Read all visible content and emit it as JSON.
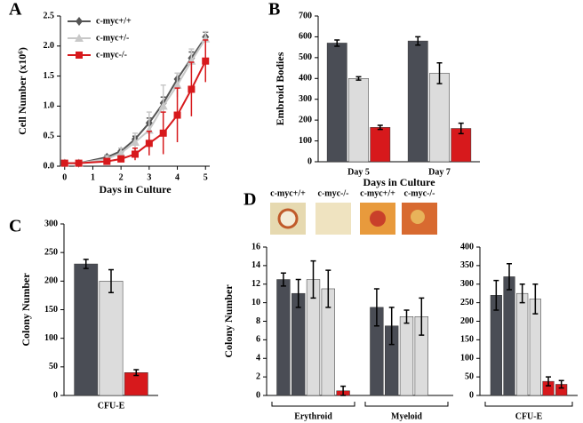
{
  "chart_data": [
    {
      "type": "line",
      "panel": "A",
      "xlabel": "Days in Culture",
      "ylabel": "Cell Number (x10⁶)",
      "x": [
        0,
        0.5,
        1.5,
        2,
        2.5,
        3,
        3.5,
        4,
        4.5,
        5
      ],
      "xlim": [
        -0.15,
        5.15
      ],
      "xticks": [
        0,
        1,
        2,
        3,
        4,
        5
      ],
      "ylim": [
        0,
        2.5
      ],
      "yticks": [
        {
          "value": 0,
          "label": "0.0"
        },
        {
          "value": 0.5,
          "label": "0.5"
        },
        {
          "value": 1,
          "label": "1.0"
        },
        {
          "value": 1.5,
          "label": "1.5"
        },
        {
          "value": 2,
          "label": "2.0"
        },
        {
          "value": 2.5,
          "label": "2.5"
        }
      ],
      "legend": "upper left",
      "series": [
        {
          "name": "c-myc+/+",
          "color": "#555555",
          "marker": "diamond",
          "values": [
            0.05,
            0.05,
            0.15,
            0.25,
            0.45,
            0.72,
            1.05,
            1.45,
            1.8,
            2.15
          ],
          "errors": [
            0,
            0,
            0.03,
            0.05,
            0.05,
            0.08,
            0.1,
            0.1,
            0.1,
            0.08
          ]
        },
        {
          "name": "c-myc+/-",
          "color": "#c8c8c8",
          "marker": "triangle",
          "values": [
            0.05,
            0.05,
            0.12,
            0.22,
            0.4,
            0.6,
            1.0,
            1.35,
            1.75,
            2.12
          ],
          "errors": [
            0,
            0,
            0.05,
            0.08,
            0.15,
            0.3,
            0.35,
            0.2,
            0.2,
            0.12
          ]
        },
        {
          "name": "c-myc-/-",
          "color": "#d7191c",
          "marker": "square",
          "values": [
            0.05,
            0.05,
            0.08,
            0.12,
            0.2,
            0.38,
            0.55,
            0.85,
            1.28,
            1.75
          ],
          "errors": [
            0,
            0,
            0.02,
            0.05,
            0.1,
            0.2,
            0.35,
            0.45,
            0.45,
            0.35
          ]
        }
      ]
    },
    {
      "type": "bar",
      "panel": "B",
      "xlabel": "Days in Culture",
      "ylabel": "Embroid Bodies",
      "categories": [
        "Day 5",
        "Day 7"
      ],
      "ylim": [
        0,
        700
      ],
      "yticks": [
        0,
        100,
        200,
        300,
        400,
        500,
        600,
        700
      ],
      "series": [
        {
          "color": "#4a4d55",
          "values": [
            570,
            580
          ],
          "errors": [
            15,
            20
          ]
        },
        {
          "color": "#dcdcdc",
          "values": [
            400,
            425
          ],
          "errors": [
            8,
            50
          ]
        },
        {
          "color": "#d7191c",
          "values": [
            165,
            160
          ],
          "errors": [
            10,
            25
          ]
        }
      ]
    },
    {
      "type": "bar",
      "panel": "C",
      "ylabel": "Colony Number",
      "categories": [
        "CFU-E"
      ],
      "ylim": [
        0,
        300
      ],
      "yticks": [
        0,
        50,
        100,
        150,
        200,
        250,
        300
      ],
      "series": [
        {
          "color": "#4a4d55",
          "values": [
            230
          ],
          "errors": [
            8
          ]
        },
        {
          "color": "#dcdcdc",
          "values": [
            200
          ],
          "errors": [
            20
          ]
        },
        {
          "color": "#d7191c",
          "values": [
            40
          ],
          "errors": [
            5
          ]
        }
      ]
    },
    {
      "type": "bar",
      "panel": "D",
      "ylabel": "Colony Number",
      "brackets": true,
      "categories": [
        "Erythroid",
        "Myeloid"
      ],
      "ylim": [
        0,
        16
      ],
      "yticks": [
        0,
        2,
        4,
        6,
        8,
        10,
        12,
        14,
        16
      ],
      "series": [
        {
          "color": "#4a4d55",
          "values": [
            12.5,
            9.5
          ],
          "errors": [
            0.7,
            2
          ]
        },
        {
          "color": "#4a4d55",
          "values": [
            11,
            7.5
          ],
          "errors": [
            1.5,
            2
          ]
        },
        {
          "color": "#dcdcdc",
          "values": [
            12.5,
            8.5
          ],
          "errors": [
            2,
            0.7
          ]
        },
        {
          "color": "#dcdcdc",
          "values": [
            11.5,
            8.5
          ],
          "errors": [
            2,
            2
          ]
        },
        {
          "color": "#d7191c",
          "values": [
            0.5,
            null
          ],
          "errors": [
            0.5,
            null
          ]
        }
      ]
    },
    {
      "type": "bar",
      "brackets": true,
      "categories": [
        "CFU-E"
      ],
      "ylim": [
        0,
        400
      ],
      "yticks": [
        0,
        50,
        100,
        150,
        200,
        250,
        300,
        350,
        400
      ],
      "series": [
        {
          "color": "#4a4d55",
          "values": [
            270
          ],
          "errors": [
            40
          ]
        },
        {
          "color": "#4a4d55",
          "values": [
            320
          ],
          "errors": [
            35
          ]
        },
        {
          "color": "#dcdcdc",
          "values": [
            275
          ],
          "errors": [
            25
          ]
        },
        {
          "color": "#dcdcdc",
          "values": [
            260
          ],
          "errors": [
            40
          ]
        },
        {
          "color": "#d7191c",
          "values": [
            38
          ],
          "errors": [
            12
          ]
        },
        {
          "color": "#d7191c",
          "values": [
            30
          ],
          "errors": [
            10
          ]
        }
      ]
    }
  ],
  "photos": [
    {
      "label": "c-myc+/+"
    },
    {
      "label": "c-myc-/-"
    },
    {
      "label": "c-myc+/+"
    },
    {
      "label": "c-myc-/-"
    }
  ]
}
